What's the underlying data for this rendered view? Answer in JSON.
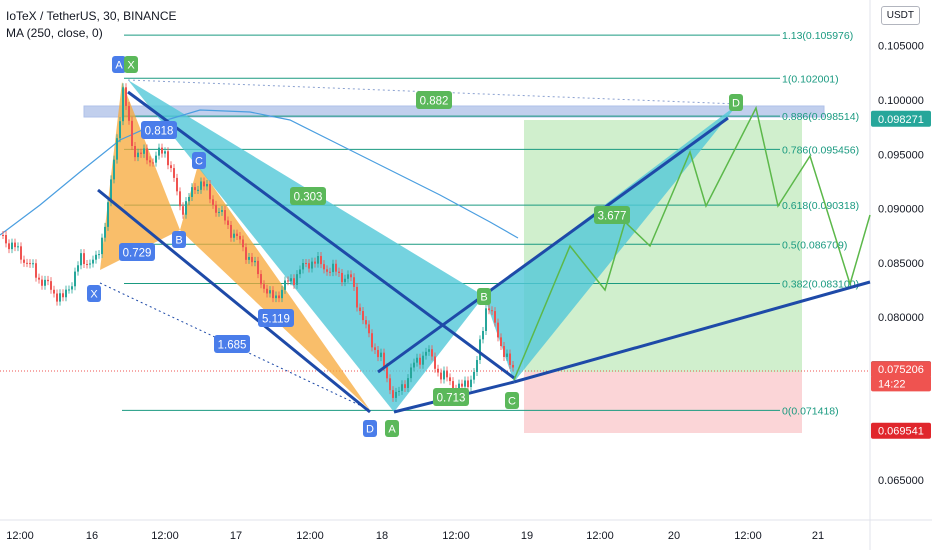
{
  "header": {
    "symbol_line": "IoTeX / TetherUS, 30, BINANCE",
    "indicator_line": "MA (250, close, 0)",
    "currency_button": "USDT"
  },
  "colors": {
    "fib_line": "#1a9a80",
    "pattern_teal": "#52c8d8",
    "pattern_orange": "#f7a838",
    "trend_blue": "#1e4aa8",
    "projection_green": "#5cb84a",
    "ma_line": "#4a9ee0",
    "label_blue": "#4a7dea",
    "label_green": "#5bb85a",
    "bull_candle": "#26a69a",
    "bear_candle": "#ef5350",
    "target_zone": "#c8ecc4",
    "stop_zone": "#fbd0d3",
    "band": "#8fa8e0"
  },
  "chart_data": {
    "type": "candlestick",
    "price_axis": {
      "range": [
        0.0605,
        0.1085
      ],
      "ticks": [
        "0.105000",
        "0.100000",
        "0.095000",
        "0.090000",
        "0.085000",
        "0.080000",
        "0.065000"
      ],
      "tick_values": [
        0.105,
        0.1,
        0.095,
        0.09,
        0.085,
        0.08,
        0.065
      ]
    },
    "time_axis": {
      "ticks": [
        "12:00",
        "16",
        "12:00",
        "17",
        "12:00",
        "18",
        "12:00",
        "19",
        "12:00",
        "20",
        "12:00",
        "21"
      ]
    },
    "price_tags": [
      {
        "text": "0.098271",
        "value": 0.098271,
        "color": "#26a69a"
      },
      {
        "text": "0.075212",
        "value": 0.075212,
        "color": "#555555"
      },
      {
        "text": "0.075206",
        "value": 0.075206,
        "color": "#ef5350"
      },
      {
        "text": "14:22",
        "value": 0.0739,
        "color": "#ef5350"
      },
      {
        "text": "0.069541",
        "value": 0.069541,
        "color": "#e0262c"
      }
    ],
    "fib_levels": [
      {
        "label": "1.13(0.105976)",
        "value": 0.105976
      },
      {
        "label": "1(0.102001)",
        "value": 0.102001
      },
      {
        "label": "0.886(0.098514)",
        "value": 0.098514
      },
      {
        "label": "0.786(0.095456)",
        "value": 0.095456
      },
      {
        "label": "0.618(0.090318)",
        "value": 0.090318
      },
      {
        "label": "0.5(0.086709)",
        "value": 0.086709
      },
      {
        "label": "0.382(0.083100)",
        "value": 0.0831
      },
      {
        "label": "0(0.071418)",
        "value": 0.071418
      }
    ],
    "point_labels": [
      {
        "text": "A",
        "color": "blue"
      },
      {
        "text": "X",
        "color": "green"
      },
      {
        "text": "C",
        "color": "blue"
      },
      {
        "text": "B",
        "color": "blue"
      },
      {
        "text": "X",
        "color": "blue"
      },
      {
        "text": "D",
        "color": "blue"
      },
      {
        "text": "A",
        "color": "green"
      },
      {
        "text": "B",
        "color": "green"
      },
      {
        "text": "C",
        "color": "green"
      },
      {
        "text": "D",
        "color": "green"
      }
    ],
    "ratio_labels": [
      {
        "text": "0.882",
        "color": "green"
      },
      {
        "text": "0.818",
        "color": "blue"
      },
      {
        "text": "0.303",
        "color": "green"
      },
      {
        "text": "0.729",
        "color": "blue"
      },
      {
        "text": "3.677",
        "color": "green"
      },
      {
        "text": "5.119",
        "color": "blue"
      },
      {
        "text": "1.685",
        "color": "blue"
      },
      {
        "text": "0.713",
        "color": "green"
      }
    ]
  }
}
